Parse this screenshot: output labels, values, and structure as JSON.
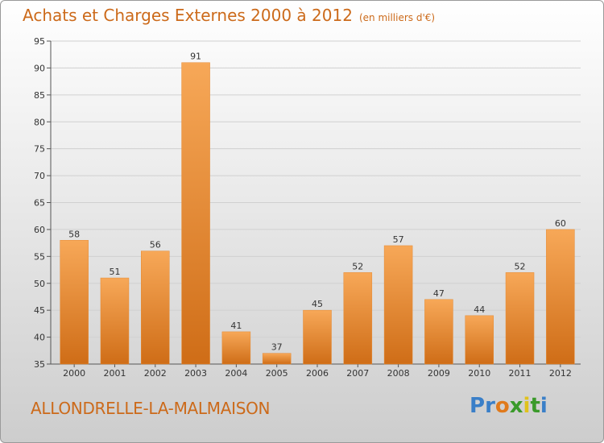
{
  "header": {
    "title": "Achats et Charges Externes 2000 à 2012",
    "subtitle": "(en milliers d'€)"
  },
  "footer": {
    "commune": "ALLONDRELLE-LA-MALMAISON",
    "logo_letters": [
      "P",
      "r",
      "o",
      "x",
      "i",
      "t",
      "i"
    ],
    "logo_colors": [
      "#3a7fc8",
      "#3a7fc8",
      "#e07a1c",
      "#3a9a2a",
      "#e0c21c",
      "#3a9a2a",
      "#3a7fc8"
    ]
  },
  "chart_data": {
    "type": "bar",
    "title": "Achats et Charges Externes 2000 à 2012",
    "subtitle": "(en milliers d'€)",
    "categories": [
      "2000",
      "2001",
      "2002",
      "2003",
      "2004",
      "2005",
      "2006",
      "2007",
      "2008",
      "2009",
      "2010",
      "2011",
      "2012"
    ],
    "values": [
      58,
      51,
      56,
      91,
      41,
      37,
      45,
      52,
      57,
      47,
      44,
      52,
      60
    ],
    "ylim": [
      35,
      95
    ],
    "yticks": [
      35,
      40,
      45,
      50,
      55,
      60,
      65,
      70,
      75,
      80,
      85,
      90,
      95
    ],
    "grid": true,
    "bar_color": "#f0913a",
    "xlabel": "",
    "ylabel": ""
  }
}
